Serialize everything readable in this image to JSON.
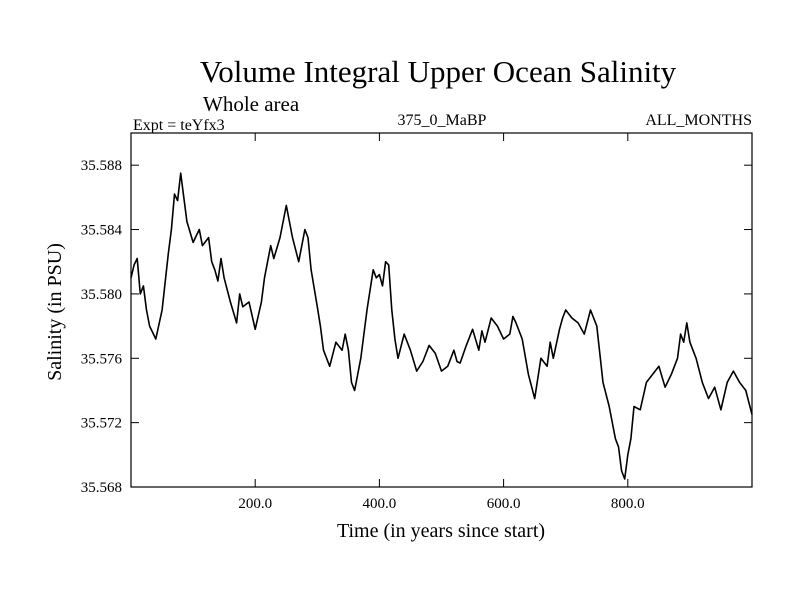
{
  "chart_data": {
    "type": "line",
    "title": "Volume Integral Upper Ocean Salinity",
    "subtitle": "Whole area",
    "experiment_label": "Expt = teYfx3",
    "run_label": "375_0_MaBP",
    "months_label": "ALL_MONTHS",
    "xlabel": "Time (in years since start)",
    "ylabel": "Salinity (in PSU)",
    "xlim": [
      0,
      1000
    ],
    "ylim": [
      35.568,
      35.59
    ],
    "x_ticks": [
      200,
      400,
      600,
      800
    ],
    "x_tick_labels": [
      "200.0",
      "400.0",
      "600.0",
      "800.0"
    ],
    "y_ticks": [
      35.568,
      35.572,
      35.576,
      35.58,
      35.584,
      35.588
    ],
    "y_tick_labels": [
      "35.568",
      "35.572",
      "35.576",
      "35.580",
      "35.584",
      "35.588"
    ],
    "grid": false,
    "series": [
      {
        "name": "Salinity",
        "x": [
          0,
          5,
          10,
          15,
          20,
          25,
          30,
          40,
          50,
          60,
          65,
          70,
          75,
          80,
          85,
          90,
          100,
          110,
          115,
          125,
          130,
          135,
          140,
          145,
          150,
          160,
          170,
          175,
          180,
          190,
          200,
          210,
          215,
          220,
          225,
          230,
          240,
          250,
          260,
          270,
          275,
          280,
          285,
          290,
          300,
          305,
          310,
          320,
          330,
          340,
          345,
          350,
          355,
          360,
          370,
          380,
          390,
          395,
          400,
          405,
          410,
          415,
          420,
          425,
          430,
          440,
          450,
          460,
          470,
          480,
          490,
          500,
          510,
          520,
          525,
          530,
          540,
          550,
          560,
          565,
          570,
          580,
          590,
          600,
          610,
          615,
          620,
          630,
          640,
          650,
          660,
          670,
          675,
          680,
          690,
          695,
          700,
          710,
          720,
          730,
          740,
          750,
          760,
          770,
          780,
          785,
          790,
          795,
          800,
          805,
          810,
          820,
          830,
          840,
          850,
          860,
          870,
          880,
          885,
          890,
          895,
          900,
          910,
          920,
          930,
          940,
          950,
          960,
          970,
          980,
          990,
          1000
        ],
        "values": [
          35.581,
          35.5818,
          35.5822,
          35.58,
          35.5805,
          35.579,
          35.578,
          35.5772,
          35.579,
          35.5825,
          35.584,
          35.5862,
          35.5858,
          35.5875,
          35.586,
          35.5845,
          35.5832,
          35.584,
          35.583,
          35.5835,
          35.582,
          35.5815,
          35.5808,
          35.5822,
          35.581,
          35.5795,
          35.5782,
          35.58,
          35.5792,
          35.5795,
          35.5778,
          35.5795,
          35.581,
          35.582,
          35.583,
          35.5822,
          35.5835,
          35.5855,
          35.5835,
          35.582,
          35.583,
          35.584,
          35.5835,
          35.5815,
          35.5792,
          35.578,
          35.5765,
          35.5755,
          35.577,
          35.5765,
          35.5775,
          35.5765,
          35.5745,
          35.574,
          35.576,
          35.579,
          35.5815,
          35.581,
          35.5812,
          35.5805,
          35.582,
          35.5818,
          35.579,
          35.5772,
          35.576,
          35.5775,
          35.5765,
          35.5752,
          35.5758,
          35.5768,
          35.5763,
          35.5752,
          35.5755,
          35.5765,
          35.5758,
          35.5757,
          35.5768,
          35.5778,
          35.5765,
          35.5777,
          35.577,
          35.5785,
          35.578,
          35.5772,
          35.5775,
          35.5786,
          35.5782,
          35.5772,
          35.575,
          35.5735,
          35.576,
          35.5755,
          35.577,
          35.576,
          35.5778,
          35.5785,
          35.579,
          35.5785,
          35.5782,
          35.5775,
          35.579,
          35.578,
          35.5745,
          35.573,
          35.571,
          35.5705,
          35.569,
          35.5685,
          35.57,
          35.571,
          35.573,
          35.5728,
          35.5745,
          35.575,
          35.5755,
          35.5742,
          35.575,
          35.576,
          35.5775,
          35.577,
          35.5782,
          35.577,
          35.576,
          35.5745,
          35.5735,
          35.5742,
          35.5728,
          35.5745,
          35.5752,
          35.5745,
          35.574,
          35.5725
        ]
      }
    ]
  }
}
